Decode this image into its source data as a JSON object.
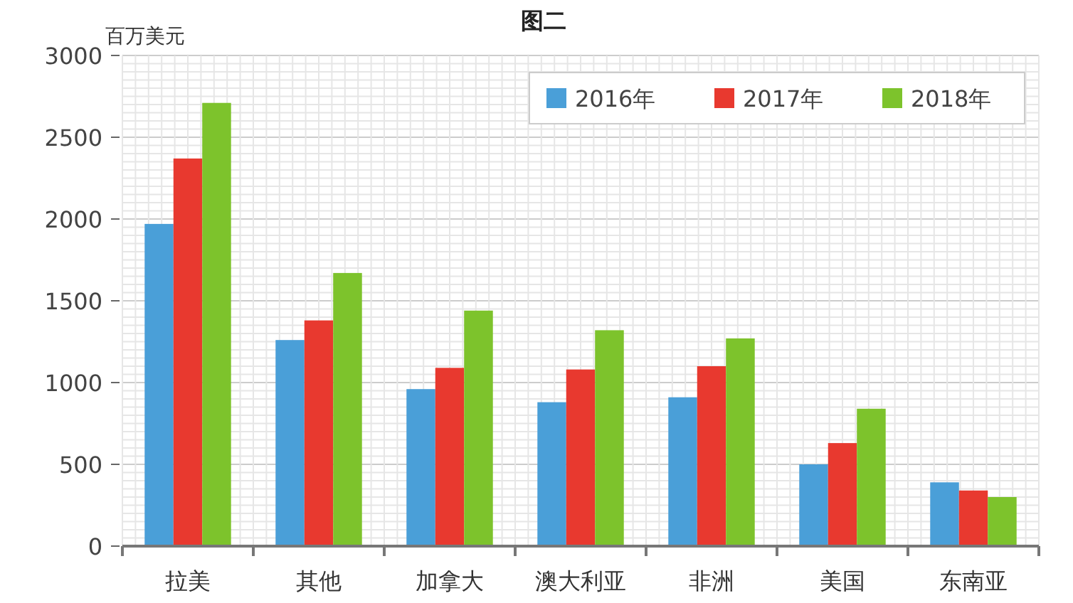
{
  "chart_data": {
    "type": "bar",
    "title": "图二",
    "ylabel": "百万美元",
    "categories": [
      "拉美",
      "其他",
      "加拿大",
      "澳大利亚",
      "非洲",
      "美国",
      "东南亚"
    ],
    "series": [
      {
        "name": "2016年",
        "color": "#4a9fd8",
        "values": [
          1970,
          1260,
          960,
          880,
          910,
          500,
          390
        ]
      },
      {
        "name": "2017年",
        "color": "#e8392f",
        "values": [
          2370,
          1380,
          1090,
          1080,
          1100,
          630,
          340
        ]
      },
      {
        "name": "2018年",
        "color": "#7dc32c",
        "values": [
          2710,
          1670,
          1440,
          1320,
          1270,
          840,
          300
        ]
      }
    ],
    "ylim": [
      0,
      3000
    ],
    "yticks": [
      0,
      500,
      1000,
      1500,
      2000,
      2500,
      3000
    ],
    "grid": true,
    "legend": "top right"
  }
}
